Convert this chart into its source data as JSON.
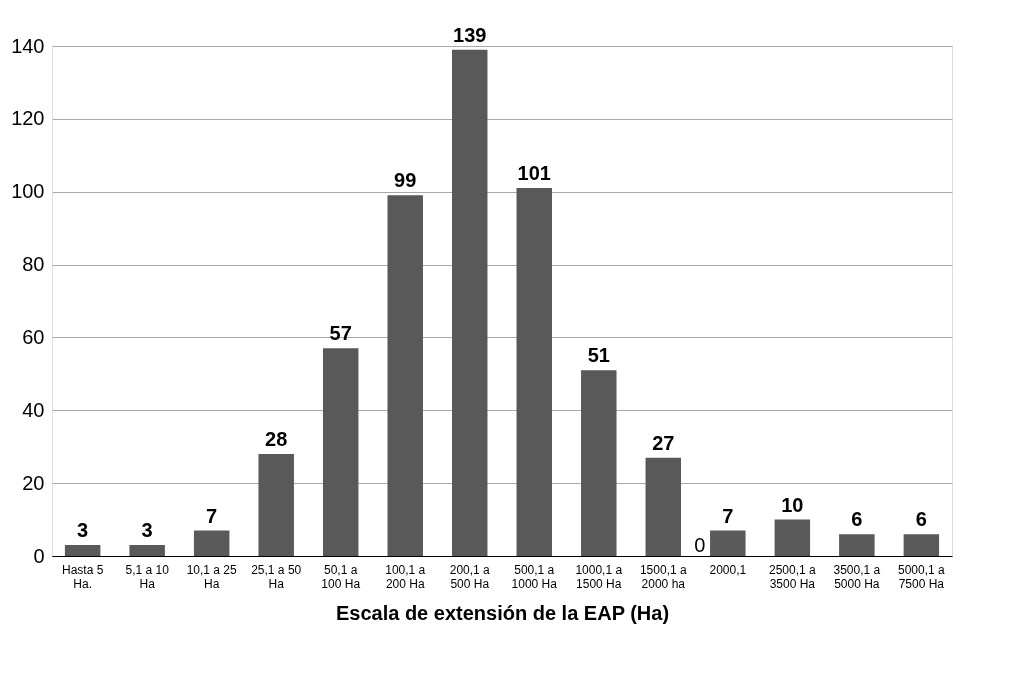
{
  "chart_data": {
    "type": "bar",
    "xlabel": "Escala de extensión de la EAP (Ha)",
    "categories": [
      "Hasta 5 Ha.",
      "5,1 a 10 Ha",
      "10,1 a 25 Ha",
      "25,1 a 50 Ha",
      "50,1 a 100 Ha",
      "100,1 a 200 Ha",
      "200,1 a 500 Ha",
      "500,1 a 1000 Ha",
      "1000,1 a 1500 Ha",
      "1500,1 a 2000 ha",
      "2000,1",
      "2500,1 a 3500 Ha",
      "3500,1 a 5000 Ha",
      "5000,1 a 7500 Ha"
    ],
    "values": [
      3,
      3,
      7,
      28,
      57,
      99,
      139,
      101,
      51,
      27,
      7,
      10,
      6,
      6
    ],
    "color": "#595959",
    "data_labels": true,
    "ylim": [
      0,
      140
    ],
    "yticks": [
      0,
      20,
      40,
      60,
      80,
      100,
      120,
      140
    ],
    "grid": "y",
    "annotations": [
      {
        "text": "0",
        "x": "2000,1",
        "y": 0
      }
    ]
  }
}
